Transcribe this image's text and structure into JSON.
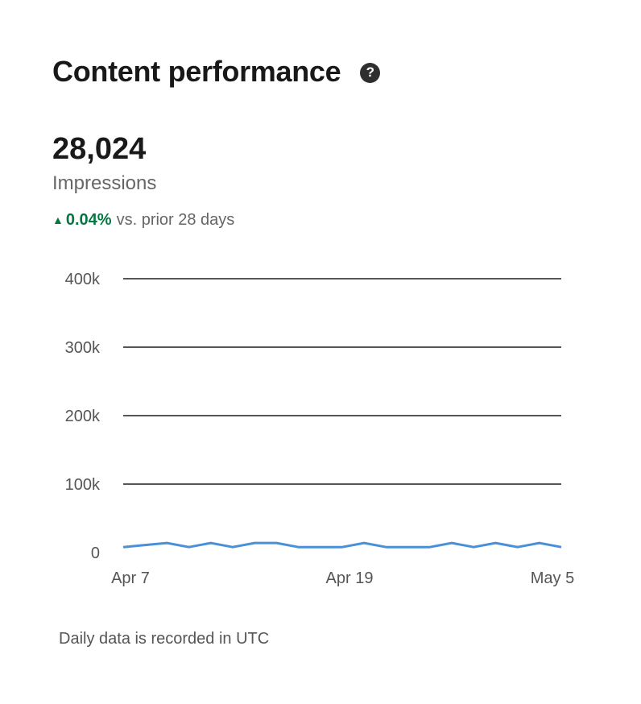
{
  "header": {
    "title": "Content performance",
    "help_icon": "question-circle-icon"
  },
  "metric": {
    "value": "28,024",
    "label": "Impressions",
    "trend": {
      "direction": "up",
      "icon": "triangle-up-icon",
      "percent": "0.04%",
      "comparison": "vs. prior 28 days",
      "color": "#057642"
    }
  },
  "chart_data": {
    "type": "line",
    "x_tick_labels": [
      "Apr 7",
      "Apr 19",
      "May 5"
    ],
    "y_tick_labels": [
      "400k",
      "300k",
      "200k",
      "100k",
      "0"
    ],
    "y_ticks": [
      400000,
      300000,
      200000,
      100000,
      0
    ],
    "ylim": [
      0,
      400000
    ],
    "grid": true,
    "series": [
      {
        "color": "#4a90d9",
        "values": [
          8000,
          11000,
          14000,
          8000,
          14000,
          8000,
          14000,
          14000,
          8000,
          8000,
          8000,
          14000,
          8000,
          8000,
          8000,
          14000,
          8000,
          14000,
          8000,
          14000,
          8000
        ]
      }
    ]
  },
  "footer": {
    "note": "Daily data is recorded in UTC"
  }
}
